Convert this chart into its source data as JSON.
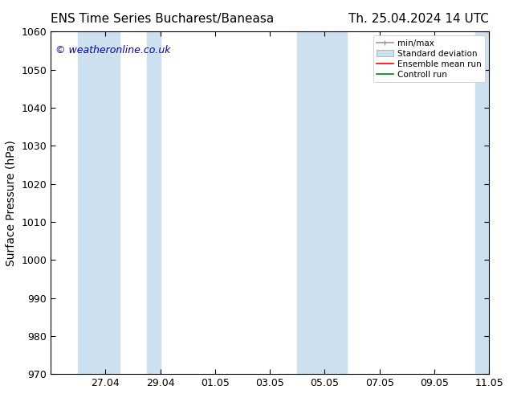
{
  "title_left": "ENS Time Series Bucharest/Baneasa",
  "title_right": "Th. 25.04.2024 14 UTC",
  "ylabel": "Surface Pressure (hPa)",
  "ylim": [
    970,
    1060
  ],
  "yticks": [
    970,
    980,
    990,
    1000,
    1010,
    1020,
    1030,
    1040,
    1050,
    1060
  ],
  "xtick_labels": [
    "27.04",
    "29.04",
    "01.05",
    "03.05",
    "05.05",
    "07.05",
    "09.05",
    "11.05"
  ],
  "shade_color": "#cce0f0",
  "watermark_text": "© weatheronline.co.uk",
  "watermark_color": "#0000cc",
  "legend_labels": [
    "min/max",
    "Standard deviation",
    "Ensemble mean run",
    "Controll run"
  ],
  "minmax_color": "#999999",
  "std_color": "#cce0f0",
  "ensemble_color": "#ff0000",
  "control_color": "#008800",
  "background_color": "#ffffff",
  "title_fontsize": 11,
  "axis_label_fontsize": 10,
  "tick_fontsize": 9,
  "watermark_fontsize": 9
}
